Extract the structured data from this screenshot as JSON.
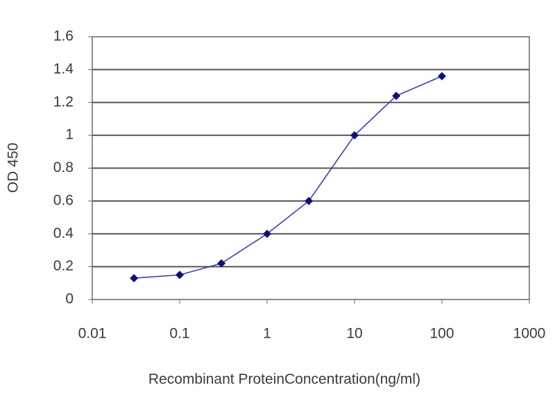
{
  "chart_data": {
    "type": "line",
    "x_label": "Recombinant ProteinConcentration(ng/ml)",
    "y_label": "OD 450",
    "x": [
      0.03,
      0.1,
      0.3,
      1,
      3,
      10,
      30,
      100
    ],
    "values": [
      0.13,
      0.15,
      0.22,
      0.4,
      0.6,
      1.0,
      1.24,
      1.36
    ],
    "color": "#3b3bb0",
    "marker_color": "#10107a",
    "xscale": "log",
    "xlim": [
      0.01,
      1000
    ],
    "xticks": [
      0.01,
      0.1,
      1,
      10,
      100,
      1000
    ],
    "ylim": [
      0,
      1.6
    ],
    "yticks": [
      0,
      0.2,
      0.4,
      0.6,
      0.8,
      1,
      1.2,
      1.4,
      1.6
    ],
    "grid": true
  }
}
